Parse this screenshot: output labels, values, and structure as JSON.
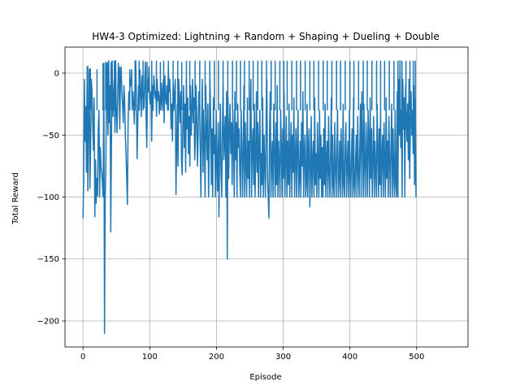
{
  "chart_data": {
    "type": "line",
    "title": "HW4-3 Optimized: Lightning + Random + Shaping + Dueling + Double",
    "xlabel": "Episode",
    "ylabel": "Total Reward",
    "xlim": [
      -27,
      577
    ],
    "ylim": [
      -221,
      21
    ],
    "xticks": [
      0,
      100,
      200,
      300,
      400,
      500
    ],
    "yticks": [
      0,
      -50,
      -100,
      -150,
      -200
    ],
    "xtick_labels": [
      "0",
      "100",
      "200",
      "300",
      "400",
      "500"
    ],
    "ytick_labels": [
      "0",
      "−50",
      "−100",
      "−150",
      "−200"
    ],
    "grid": true,
    "colors": {
      "line": "#1f77b4",
      "grid": "#b0b0b0",
      "axes": "#000000"
    },
    "series": [
      {
        "values": [
          -117,
          -85,
          -5,
          -55,
          -27,
          -80,
          5,
          -95,
          -40,
          3,
          -93,
          -60,
          -5,
          -15,
          -40,
          -62,
          -20,
          -116,
          -70,
          -105,
          -85,
          -99,
          -45,
          -30,
          -100,
          -60,
          -76,
          -80,
          -90,
          -100,
          8,
          -210,
          -100,
          -75,
          8,
          -15,
          -50,
          10,
          -40,
          -10,
          -128,
          -58,
          10,
          -35,
          -20,
          -5,
          -48,
          10,
          -33,
          -48,
          -20,
          8,
          -10,
          -45,
          -5,
          5,
          -15,
          -25,
          -40,
          -10,
          -20,
          -50,
          -65,
          -85,
          -106,
          -40,
          -15,
          -20,
          -5,
          -10,
          3,
          -30,
          -15,
          -25,
          -41,
          -5,
          10,
          -20,
          -69,
          -38,
          -10,
          -30,
          3,
          -15,
          -35,
          -2,
          -20,
          -15,
          -28,
          -5,
          9,
          -38,
          -60,
          -5,
          -15,
          5,
          -20,
          -25,
          -15,
          -55,
          -10,
          -30,
          -2,
          -10,
          -20,
          -15,
          -35,
          -5,
          -22,
          -15,
          -33,
          -18,
          -25,
          -8,
          -30,
          -15,
          -5,
          -40,
          -2,
          -20,
          -25,
          -10,
          -30,
          5,
          -15,
          -5,
          -20,
          -45,
          -25,
          -55,
          -10,
          -30,
          -15,
          -5,
          -98,
          -60,
          -25,
          -75,
          -5,
          -20,
          -40,
          -15,
          -70,
          -82,
          -40,
          -10,
          -60,
          -25,
          -80,
          -5,
          -45,
          -20,
          -65,
          -35,
          -75,
          -10,
          -50,
          -30,
          -5,
          -40,
          -20,
          -70,
          -55,
          -10,
          -35,
          -75,
          -50,
          -15,
          -25,
          -60,
          -100,
          -40,
          -5,
          -80,
          -30,
          -55,
          -100,
          -10,
          -45,
          -70,
          -25,
          -100,
          -60,
          -5,
          -35,
          -90,
          -45,
          -100,
          -20,
          -65,
          -50,
          -100,
          -30,
          -75,
          -95,
          -40,
          -116,
          -60,
          -25,
          -80,
          -100,
          -45,
          -10,
          -70,
          -55,
          -35,
          -100,
          -15,
          -150,
          -20,
          -85,
          -45,
          -25,
          -65,
          -40,
          -90,
          -30,
          -55,
          -100,
          -15,
          -70,
          -40,
          -100,
          -25,
          -60,
          -45,
          -80,
          -100,
          -30,
          -55,
          -100,
          -65,
          -10,
          -100,
          -40,
          -75,
          -100,
          -20,
          -85,
          -55,
          -100,
          -35,
          -5,
          -100,
          -60,
          -45,
          -90,
          -25,
          -100,
          -70,
          -15,
          -80,
          -40,
          -100,
          -55,
          -30,
          -100,
          -65,
          -90,
          -20,
          -100,
          -50,
          -75,
          -100,
          -35,
          -5,
          -85,
          -100,
          -117,
          -45,
          -15,
          -100,
          -70,
          -55,
          -100,
          -25,
          -65,
          -100,
          -40,
          -90,
          -10,
          -100,
          -55,
          -75,
          -100,
          -30,
          -60,
          -100,
          -45,
          -85,
          -15,
          -100,
          -70,
          -35,
          -100,
          -55,
          -90,
          -25,
          -100,
          -65,
          -40,
          -100,
          -50,
          -80,
          -20,
          -100,
          -70,
          -45,
          -100,
          -60,
          -30,
          -100,
          -85,
          -55,
          -100,
          -40,
          -75,
          -15,
          -100,
          -65,
          -50,
          -100,
          -90,
          -25,
          -100,
          -60,
          -45,
          -108,
          -80,
          -35,
          -100,
          -70,
          -55,
          -100,
          -20,
          -90,
          -65,
          -100,
          -40,
          -75,
          -100,
          -30,
          -85,
          -50,
          -100,
          -60,
          -100,
          -45,
          -90,
          -25,
          -100,
          -70,
          -55,
          -100,
          -35,
          -80,
          -100,
          -65,
          -20,
          -100,
          -50,
          -90,
          -100,
          -40,
          -75,
          -100,
          -60,
          -30,
          -100,
          -85,
          -55,
          -100,
          -45,
          -70,
          -100,
          -25,
          -90,
          -100,
          -60,
          -40,
          -100,
          -75,
          -55,
          -100,
          -30,
          -85,
          -100,
          -65,
          -45,
          -100,
          -20,
          -90,
          -100,
          -70,
          -50,
          -100,
          -35,
          -80,
          -100,
          -60,
          -25,
          -100,
          -15,
          -50,
          -100,
          -25,
          -75,
          -100,
          -40,
          -65,
          -100,
          -30,
          -55,
          -100,
          -20,
          -85,
          -45,
          -100,
          -70,
          -35,
          -100,
          -55,
          -80,
          -100,
          -25,
          -60,
          -100,
          -45,
          -90,
          -30,
          -100,
          -65,
          -50,
          -100,
          -40,
          -75,
          -100,
          -20,
          -85,
          -55,
          -100,
          -35,
          -70,
          -100,
          -60,
          -25,
          -100,
          -45,
          -80,
          -100,
          -30,
          -90,
          -100,
          -15,
          -100,
          -5,
          -50,
          10,
          -60,
          -30,
          -100,
          -5,
          -45,
          -20,
          -100,
          -10,
          -35,
          -55,
          -25,
          -70,
          -5,
          -85,
          -40,
          -15,
          -50,
          -30,
          -65,
          -10,
          -90,
          -20,
          -100
        ]
      }
    ],
    "line_decorations": {
      "peaks": [
        [
          7,
          6
        ],
        [
          11,
          4
        ],
        [
          21,
          3
        ],
        [
          30,
          8
        ],
        [
          34,
          9
        ],
        [
          37,
          9
        ],
        [
          42,
          9
        ],
        [
          47,
          10
        ],
        [
          55,
          5
        ],
        [
          70,
          3
        ],
        [
          78,
          10
        ],
        [
          84,
          10
        ],
        [
          90,
          10
        ],
        [
          96,
          9
        ],
        [
          103,
          10
        ],
        [
          110,
          10
        ],
        [
          116,
          9
        ],
        [
          121,
          10
        ],
        [
          128,
          10
        ],
        [
          135,
          10
        ],
        [
          142,
          10
        ],
        [
          148,
          9
        ],
        [
          155,
          10
        ],
        [
          160,
          10
        ],
        [
          168,
          10
        ],
        [
          175,
          10
        ],
        [
          183,
          10
        ],
        [
          190,
          10
        ],
        [
          197,
          10
        ],
        [
          203,
          10
        ],
        [
          210,
          10
        ],
        [
          217,
          10
        ],
        [
          224,
          10
        ],
        [
          230,
          10
        ],
        [
          236,
          10
        ],
        [
          242,
          10
        ],
        [
          249,
          10
        ],
        [
          255,
          10
        ],
        [
          262,
          10
        ],
        [
          268,
          10
        ],
        [
          275,
          10
        ],
        [
          282,
          10
        ],
        [
          288,
          10
        ],
        [
          295,
          10
        ],
        [
          301,
          10
        ],
        [
          306,
          10
        ],
        [
          313,
          10
        ],
        [
          320,
          10
        ],
        [
          326,
          10
        ],
        [
          333,
          10
        ],
        [
          340,
          10
        ],
        [
          346,
          10
        ],
        [
          353,
          10
        ],
        [
          360,
          10
        ],
        [
          366,
          10
        ],
        [
          373,
          10
        ],
        [
          380,
          10
        ],
        [
          386,
          10
        ],
        [
          393,
          10
        ],
        [
          400,
          10
        ],
        [
          406,
          10
        ],
        [
          413,
          10
        ],
        [
          420,
          10
        ],
        [
          426,
          10
        ],
        [
          433,
          10
        ],
        [
          440,
          10
        ],
        [
          446,
          10
        ],
        [
          452,
          10
        ],
        [
          459,
          10
        ],
        [
          466,
          10
        ],
        [
          472,
          10
        ],
        [
          478,
          10
        ],
        [
          484,
          10
        ],
        [
          490,
          10
        ],
        [
          495,
          10
        ],
        [
          498,
          10
        ]
      ]
    }
  }
}
